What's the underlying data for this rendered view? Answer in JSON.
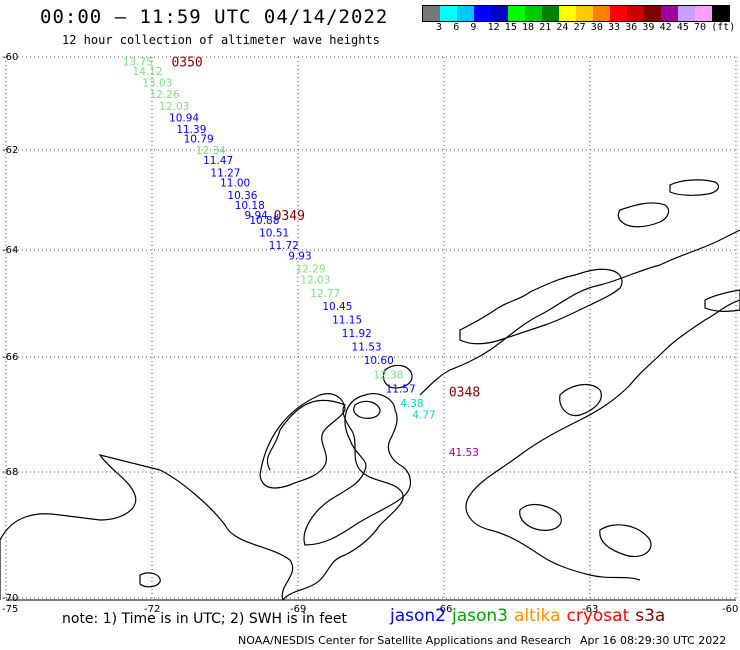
{
  "header": {
    "title": "00:00 – 11:59 UTC 04/14/2022",
    "subtitle": "12 hour collection of altimeter wave heights"
  },
  "legend": {
    "colors": [
      "#777777",
      "#00ffff",
      "#00c8ff",
      "#0000ff",
      "#0000c8",
      "#00ff00",
      "#00c800",
      "#008000",
      "#ffff00",
      "#ffc800",
      "#ff8000",
      "#ff0000",
      "#c80000",
      "#800000",
      "#a000a0",
      "#c8a0ff",
      "#ffa0ff",
      "#000000"
    ],
    "labels": [
      "3",
      "6",
      "9",
      "12",
      "15",
      "18",
      "21",
      "24",
      "27",
      "30",
      "33",
      "36",
      "39",
      "42",
      "45",
      "70",
      "(ft)"
    ]
  },
  "axes": {
    "lat_labels": [
      "-60",
      "-62",
      "-64",
      "-66",
      "-68",
      "-70"
    ],
    "lon_labels": [
      "-75",
      "-72",
      "-69",
      "-66",
      "-63",
      "-60"
    ]
  },
  "passes": [
    {
      "label": "0350",
      "lat": -60.1,
      "lon": -71.6
    },
    {
      "label": "0349",
      "lat": -63.3,
      "lon": -69.5
    },
    {
      "label": "0348",
      "lat": -66.6,
      "lon": -65.9
    }
  ],
  "observations": [
    {
      "value": "13.75",
      "lat": -60.1,
      "lon": -72.6,
      "color": "#80e080"
    },
    {
      "value": "14.12",
      "lat": -60.3,
      "lon": -72.4,
      "color": "#80e080"
    },
    {
      "value": "13.03",
      "lat": -60.55,
      "lon": -72.2,
      "color": "#80e080"
    },
    {
      "value": "12.26",
      "lat": -60.8,
      "lon": -72.05,
      "color": "#80e080"
    },
    {
      "value": "12.03",
      "lat": -61.05,
      "lon": -71.85,
      "color": "#80e080"
    },
    {
      "value": "10.94",
      "lat": -61.3,
      "lon": -71.65,
      "color": "#0000ff"
    },
    {
      "value": "11.39",
      "lat": -61.55,
      "lon": -71.5,
      "color": "#0000ff"
    },
    {
      "value": "10.79",
      "lat": -61.75,
      "lon": -71.35,
      "color": "#0000ff"
    },
    {
      "value": "12.34",
      "lat": -62.0,
      "lon": -71.1,
      "color": "#80e080"
    },
    {
      "value": "11.47",
      "lat": -62.2,
      "lon": -70.95,
      "color": "#0000ff"
    },
    {
      "value": "11.27",
      "lat": -62.45,
      "lon": -70.8,
      "color": "#0000ff"
    },
    {
      "value": "11.00",
      "lat": -62.65,
      "lon": -70.6,
      "color": "#0000ff"
    },
    {
      "value": "10.36",
      "lat": -62.9,
      "lon": -70.45,
      "color": "#0000ff"
    },
    {
      "value": "10.18",
      "lat": -63.1,
      "lon": -70.3,
      "color": "#0000ff"
    },
    {
      "value": "9.94",
      "lat": -63.3,
      "lon": -70.1,
      "color": "#0000ff"
    },
    {
      "value": "10.88",
      "lat": -63.4,
      "lon": -70.0,
      "color": "#0000ff"
    },
    {
      "value": "10.51",
      "lat": -63.65,
      "lon": -69.8,
      "color": "#0000ff"
    },
    {
      "value": "11.72",
      "lat": -63.9,
      "lon": -69.6,
      "color": "#0000ff"
    },
    {
      "value": "9.93",
      "lat": -64.1,
      "lon": -69.2,
      "color": "#0000ff"
    },
    {
      "value": "12.29",
      "lat": -64.35,
      "lon": -69.05,
      "color": "#80e080"
    },
    {
      "value": "12.03",
      "lat": -64.55,
      "lon": -68.95,
      "color": "#80e080"
    },
    {
      "value": "12.77",
      "lat": -64.8,
      "lon": -68.75,
      "color": "#80e080"
    },
    {
      "value": "10.45",
      "lat": -65.05,
      "lon": -68.5,
      "color": "#0000ff"
    },
    {
      "value": "11.15",
      "lat": -65.3,
      "lon": -68.3,
      "color": "#0000ff"
    },
    {
      "value": "11.92",
      "lat": -65.55,
      "lon": -68.1,
      "color": "#0000ff"
    },
    {
      "value": "11.53",
      "lat": -65.8,
      "lon": -67.9,
      "color": "#0000ff"
    },
    {
      "value": "10.60",
      "lat": -66.05,
      "lon": -67.65,
      "color": "#0000ff"
    },
    {
      "value": "12.38",
      "lat": -66.3,
      "lon": -67.45,
      "color": "#80e080"
    },
    {
      "value": "11.57",
      "lat": -66.55,
      "lon": -67.2,
      "color": "#0000ff"
    },
    {
      "value": "4.38",
      "lat": -66.8,
      "lon": -66.9,
      "color": "#00d0d0"
    },
    {
      "value": "4.77",
      "lat": -67.0,
      "lon": -66.65,
      "color": "#00d0d0"
    },
    {
      "value": "41.53",
      "lat": -67.65,
      "lon": -65.9,
      "color": "#a000a0"
    }
  ],
  "footer": {
    "note": "note: 1) Time is in UTC; 2) SWH is in feet",
    "satellites": [
      {
        "name": "jason2",
        "color": "#0000ff"
      },
      {
        "name": "jason3",
        "color": "#00a000"
      },
      {
        "name": "altika",
        "color": "#ff9000"
      },
      {
        "name": "cryosat",
        "color": "#ff0000"
      },
      {
        "name": "s3a",
        "color": "#800000"
      }
    ],
    "credit": "NOAA/NESDIS Center for Satellite Applications and Research",
    "timestamp": "Apr 16 08:29:30 UTC 2022"
  }
}
